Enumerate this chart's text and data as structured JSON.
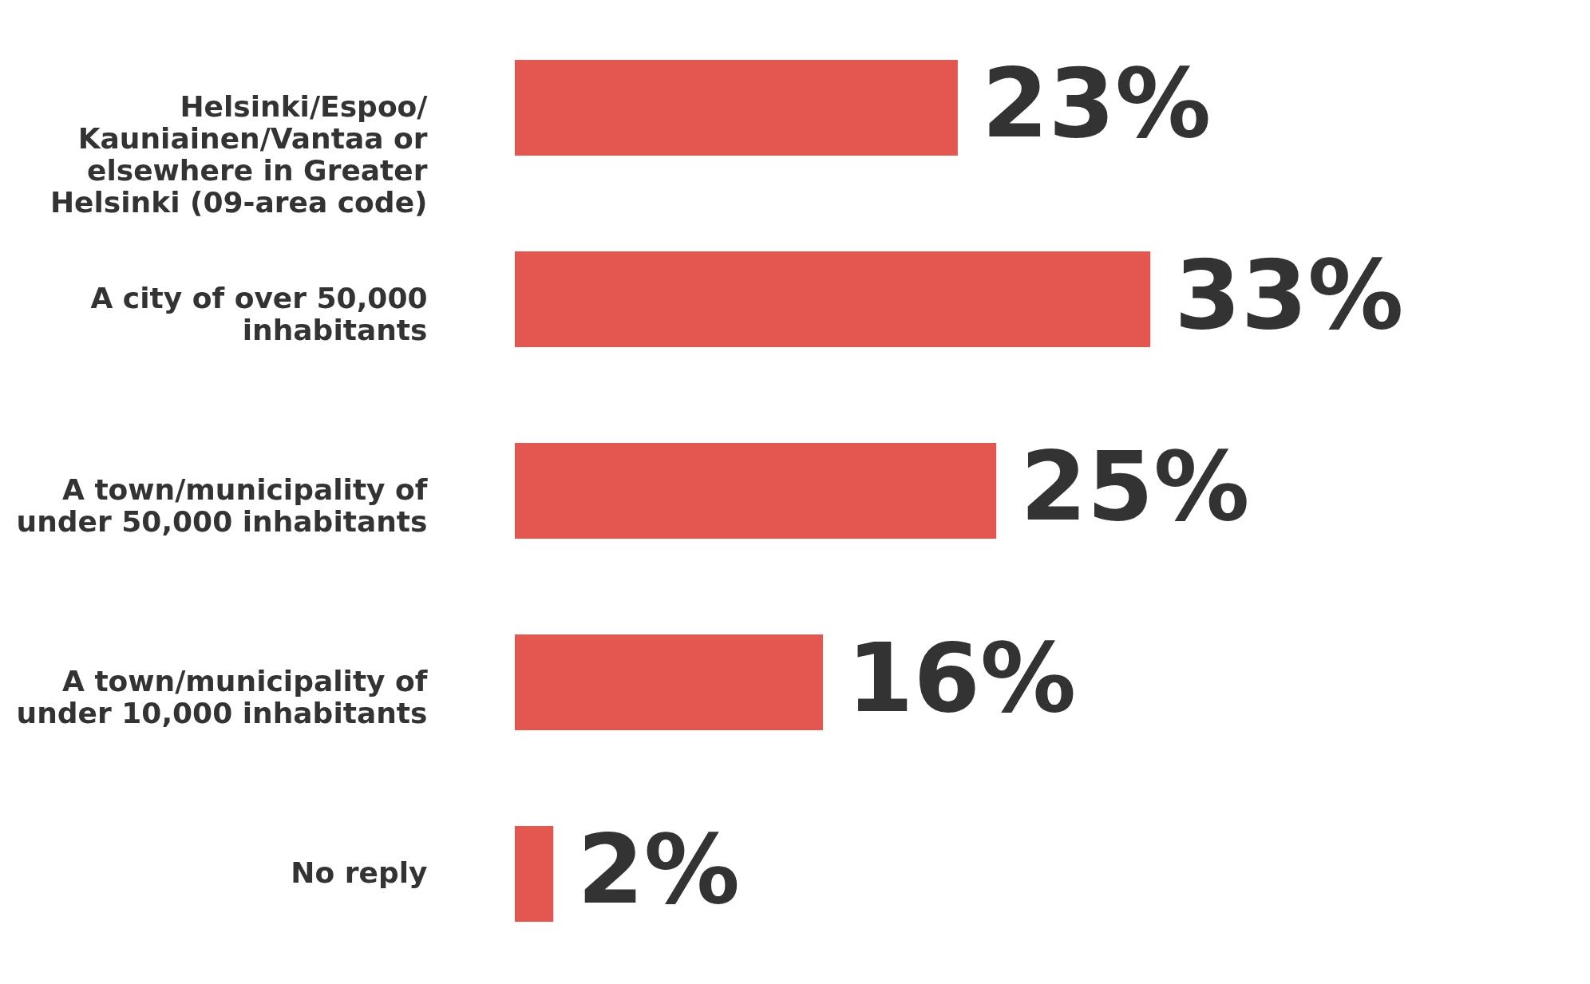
{
  "chart_data": {
    "type": "bar",
    "orientation": "horizontal",
    "categories": [
      "Helsinki/Espoo/\nKauniainen/Vantaa or\nelsewhere in Greater\nHelsinki (09-area code)",
      "A city of over 50,000\ninhabitants",
      "A town/municipality of\nunder 50,000 inhabitants",
      "A town/municipality of\nunder 10,000 inhabitants",
      "No reply"
    ],
    "values": [
      23,
      33,
      25,
      16,
      2
    ],
    "value_labels": [
      "23%",
      "33%",
      "25%",
      "16%",
      "2%"
    ],
    "color": "#e35750",
    "grid": false
  }
}
